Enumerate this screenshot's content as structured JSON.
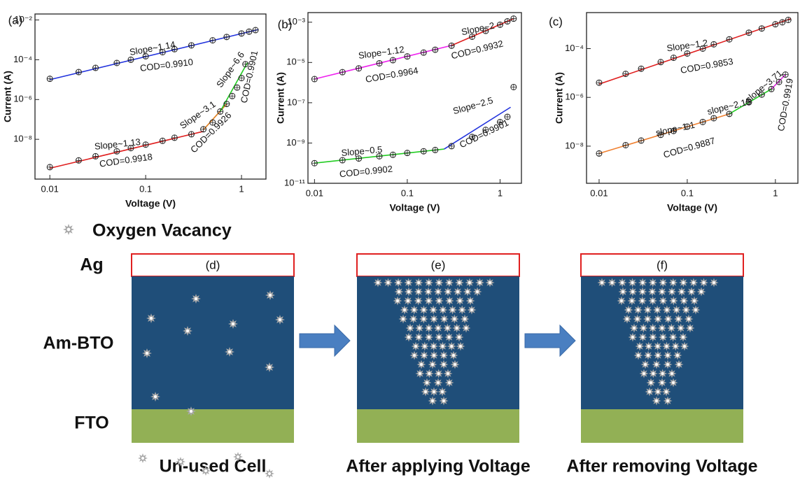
{
  "chart_data": [
    {
      "type": "scatter",
      "label": "(a)",
      "xlabel": "Voltage (V)",
      "ylabel": "Current (A)",
      "xscale": "log",
      "yscale": "log",
      "xlim": [
        0.007,
        1.8
      ],
      "ylim": [
        1e-10,
        0.02
      ],
      "xticks": [
        0.01,
        0.1,
        1
      ],
      "yticks": [
        {
          "value": 0.01,
          "label": "10⁻²"
        },
        {
          "value": 0.0001,
          "label": "10⁻⁴"
        },
        {
          "value": 1e-06,
          "label": "10⁻⁶"
        },
        {
          "value": 1e-08,
          "label": "10⁻⁸"
        }
      ],
      "annotations": [
        "Slope~1.14",
        "COD=0.9910",
        "Slope~1.13",
        "COD=0.9918",
        "Slope~3.1",
        "COD=0.9926",
        "Slope~6.6",
        "COD=0.9901"
      ],
      "series": [
        {
          "style": "line",
          "color": "#2233dd",
          "x": [
            0.01,
            1.5
          ],
          "values": [
            1e-05,
            0.0033
          ]
        },
        {
          "style": "line",
          "color": "#e02020",
          "x": [
            0.01,
            0.4
          ],
          "values": [
            3.5e-10,
            2.5e-08
          ]
        },
        {
          "style": "line",
          "color": "#e08020",
          "x": [
            0.4,
            0.7
          ],
          "values": [
            3e-08,
            6e-07
          ]
        },
        {
          "style": "line",
          "color": "#22cc22",
          "x": [
            0.6,
            1.15
          ],
          "values": [
            2.5e-07,
            7e-05
          ]
        },
        {
          "style": "points",
          "color": "#222222",
          "x": [
            0.01,
            0.02,
            0.03,
            0.05,
            0.07,
            0.1,
            0.15,
            0.2,
            0.3,
            0.5,
            0.7,
            1,
            1.2,
            1.4
          ],
          "values": [
            1.1e-05,
            2.4e-05,
            3.9e-05,
            6.9e-05,
            0.0001,
            0.00015,
            0.00024,
            0.00034,
            0.00053,
            0.00095,
            0.0014,
            0.0021,
            0.0026,
            0.0031
          ]
        },
        {
          "style": "points",
          "color": "#222222",
          "x": [
            0.01,
            0.02,
            0.03,
            0.05,
            0.07,
            0.1,
            0.15,
            0.2,
            0.3,
            0.4,
            0.5,
            0.6,
            0.7,
            0.8,
            0.9,
            1,
            1.1
          ],
          "values": [
            4e-10,
            8.7e-10,
            1.4e-09,
            2.5e-09,
            3.6e-09,
            5.4e-09,
            8.4e-09,
            1.2e-08,
            1.8e-08,
            3.2e-08,
            7e-08,
            2.5e-07,
            6e-07,
            1.5e-06,
            4e-06,
            1.2e-05,
            6e-05
          ]
        }
      ]
    },
    {
      "type": "scatter",
      "label": "(b)",
      "xlabel": "Voltage (V)",
      "ylabel": "Current (A)",
      "xscale": "log",
      "yscale": "log",
      "xlim": [
        0.0085,
        1.7
      ],
      "ylim": [
        1e-11,
        0.003
      ],
      "xticks": [
        0.01,
        0.1,
        1
      ],
      "yticks": [
        {
          "value": 0.001,
          "label": "10⁻³"
        },
        {
          "value": 1e-05,
          "label": "10⁻⁵"
        },
        {
          "value": 1e-07,
          "label": "10⁻⁷"
        },
        {
          "value": 1e-09,
          "label": "10⁻⁹"
        },
        {
          "value": 1e-11,
          "label": "10⁻¹¹"
        }
      ],
      "annotations": [
        "Slope~1.12",
        "COD=0.9964",
        "Slope~2",
        "COD=0.9932",
        "Slope~0.5",
        "COD=0.9902",
        "Slope~2.5",
        "COD=0.9901"
      ],
      "series": [
        {
          "style": "line",
          "color": "#ee22ee",
          "x": [
            0.01,
            0.3
          ],
          "values": [
            1.5e-06,
            7e-05
          ]
        },
        {
          "style": "line",
          "color": "#e02020",
          "x": [
            0.3,
            1.4
          ],
          "values": [
            7e-05,
            0.0015
          ]
        },
        {
          "style": "line",
          "color": "#22cc22",
          "x": [
            0.01,
            0.25
          ],
          "values": [
            1e-10,
            5e-10
          ]
        },
        {
          "style": "line",
          "color": "#2233dd",
          "x": [
            0.25,
            1.3
          ],
          "values": [
            5e-10,
            6e-08
          ]
        },
        {
          "style": "points",
          "color": "#222222",
          "x": [
            0.01,
            0.02,
            0.03,
            0.05,
            0.07,
            0.1,
            0.15,
            0.2,
            0.3,
            0.5,
            0.7,
            1,
            1.2,
            1.4
          ],
          "values": [
            1.5e-06,
            3.3e-06,
            5.1e-06,
            9.1e-06,
            1.3e-05,
            2e-05,
            3.1e-05,
            4.3e-05,
            6.8e-05,
            0.00019,
            0.00037,
            0.00075,
            0.0011,
            0.0015
          ]
        },
        {
          "style": "points",
          "color": "#222222",
          "x": [
            0.01,
            0.02,
            0.03,
            0.05,
            0.07,
            0.1,
            0.15,
            0.2,
            0.3,
            0.5,
            0.7,
            1,
            1.2,
            1.4
          ],
          "values": [
            1e-10,
            1.4e-10,
            1.7e-10,
            2.2e-10,
            2.6e-10,
            3.2e-10,
            3.9e-10,
            4.5e-10,
            7e-10,
            2e-09,
            4.5e-09,
            1.1e-08,
            2e-08,
            6e-07
          ]
        }
      ]
    },
    {
      "type": "scatter",
      "label": "(c)",
      "xlabel": "Voltage (V)",
      "ylabel": "Current (A)",
      "xscale": "log",
      "yscale": "log",
      "xlim": [
        0.0072,
        1.8
      ],
      "ylim": [
        3e-10,
        0.003
      ],
      "xticks": [
        0.01,
        0.1,
        1
      ],
      "yticks": [
        {
          "value": 0.0001,
          "label": "10⁻⁴"
        },
        {
          "value": 1e-06,
          "label": "10⁻⁶"
        },
        {
          "value": 1e-08,
          "label": "10⁻⁸"
        }
      ],
      "annotations": [
        "Slope~1.2",
        "COD=0.9853",
        "slope~1.1",
        "COD=0.9887",
        "slope~2.15",
        "slope~3.71",
        "COD=0.9919"
      ],
      "series": [
        {
          "style": "line",
          "color": "#e02020",
          "x": [
            0.01,
            1.5
          ],
          "values": [
            3.5e-06,
            0.0017
          ]
        },
        {
          "style": "line",
          "color": "#f08030",
          "x": [
            0.01,
            0.3
          ],
          "values": [
            5e-09,
            2.1e-07
          ]
        },
        {
          "style": "line",
          "color": "#22cc22",
          "x": [
            0.3,
            0.9
          ],
          "values": [
            2.1e-07,
            2.2e-06
          ]
        },
        {
          "style": "line",
          "color": "#dd22dd",
          "x": [
            0.9,
            1.3
          ],
          "values": [
            2.2e-06,
            8.6e-06
          ]
        },
        {
          "style": "points",
          "color": "#222222",
          "x": [
            0.01,
            0.02,
            0.03,
            0.05,
            0.07,
            0.1,
            0.15,
            0.2,
            0.3,
            0.5,
            0.7,
            1,
            1.2,
            1.4
          ],
          "values": [
            4e-06,
            9.2e-06,
            1.5e-05,
            2.8e-05,
            4.2e-05,
            6.3e-05,
            0.0001,
            0.00015,
            0.00024,
            0.00045,
            0.00067,
            0.001,
            0.0012,
            0.0015
          ]
        },
        {
          "style": "points",
          "color": "#222222",
          "x": [
            0.01,
            0.02,
            0.03,
            0.05,
            0.07,
            0.1,
            0.15,
            0.2,
            0.3,
            0.5,
            0.7,
            0.9,
            1.1,
            1.3
          ],
          "values": [
            5e-09,
            1.1e-08,
            1.7e-08,
            2.9e-08,
            4.2e-08,
            6.3e-08,
            9.8e-08,
            1.4e-07,
            2.1e-07,
            6.3e-07,
            1.3e-06,
            2.2e-06,
            4.3e-06,
            8.6e-06
          ]
        }
      ]
    }
  ],
  "diagram": {
    "legend": "Oxygen Vacancy",
    "layers": [
      "Ag",
      "Am-BTO",
      "FTO"
    ],
    "panels": [
      {
        "label": "(d)",
        "caption": "Un-used Cell"
      },
      {
        "label": "(e)",
        "caption": "After applying Voltage"
      },
      {
        "label": "(f)",
        "caption": "After removing Voltage"
      }
    ]
  }
}
